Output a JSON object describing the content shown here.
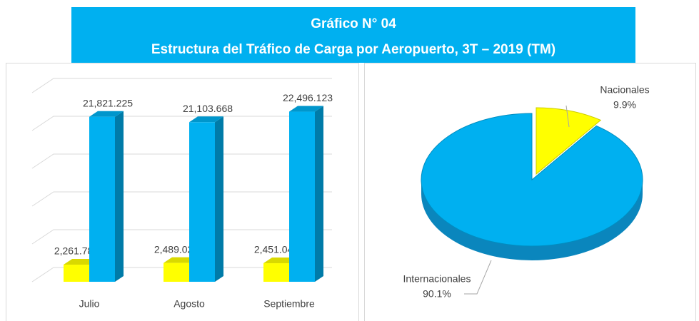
{
  "chart_data": [
    {
      "type": "bar3d",
      "categories": [
        "Julio",
        "Agosto",
        "Septiembre"
      ],
      "series": [
        {
          "color": "#ffff00",
          "values": [
            2261.786,
            2489.027,
            2451.049
          ],
          "value_labels": [
            "2,261.786",
            "2,489.027",
            "2,451.049"
          ]
        },
        {
          "color": "#00b0f0",
          "values": [
            21821.225,
            21103.668,
            22496.123
          ],
          "value_labels": [
            "21,821.225",
            "21,103.668",
            "22,496.123"
          ]
        }
      ],
      "ylim": [
        0,
        25000
      ],
      "yticks": [
        0,
        5000,
        10000,
        15000,
        20000,
        25000
      ],
      "grid": true,
      "tick_labels": false
    },
    {
      "type": "pie3d",
      "title": "Gráfico N° 04",
      "subtitle": "Estructura del Tráfico de Carga por Aeropuerto, 3T – 2019 (TM)",
      "categories": [
        "Nacionales",
        "Internacionales"
      ],
      "values": [
        9.9,
        90.1
      ],
      "value_labels": [
        "9.9%",
        "90.1%"
      ],
      "colors": [
        "#ffff00",
        "#00b0f0"
      ]
    }
  ]
}
